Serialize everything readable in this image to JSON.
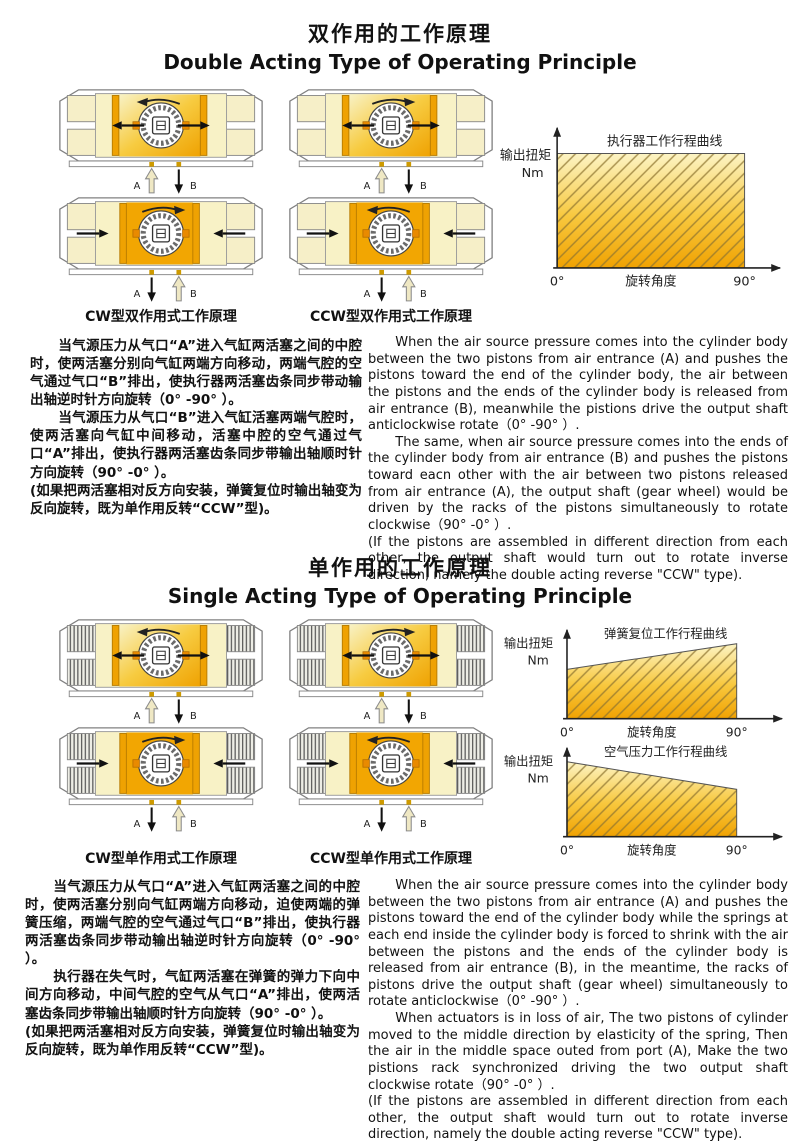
{
  "sections": {
    "double": {
      "title_zh": "双作用的工作原理",
      "title_en": "Double Acting Type of Operating Principle",
      "caption_cw": "CW型双作用式工作原理",
      "caption_ccw": "CCW型双作用式工作原理",
      "text_zh": [
        "当气源压力从气口“A”进入气缸两活塞之间的中腔时，使两活塞分别向气缸两端方向移动，两端气腔的空气通过气口“B”排出，使执行器两活塞齿条同步带动输出轴逆时针方向旋转（0° -90° ）。",
        "当气源压力从气口“B”进入气缸活塞两端气腔时，使两活塞向气缸中间移动，活塞中腔的空气通过气口“A”排出，使执行器两活塞齿条同步带输出轴顺时针方向旋转（90° -0° ）。",
        "(如果把两活塞相对反方向安装，弹簧复位时输出轴变为反向旋转，既为单作用反转“CCW”型)。"
      ],
      "text_en": [
        "When the air source pressure comes into the cylinder body between the two pistons from air entrance (A) and pushes the pistons toward the end of the cylinder body, the air between the pistons and the ends of the cylinder body is released from air entrance (B), meanwhile the pistions drive the output shaft anticlockwise rotate（0° -90° ）.",
        "The same, when air source pressure comes into the ends of the cylinder body from air entrance (B) and pushes the pistons toward eacn other with the air between two pistons released from air entrance (A), the output shaft (gear wheel) would be driven by the racks of the pistons simultaneously to rotate clockwise（90° -0° ）.",
        "(If the pistons are assembled in different direction from each other, the output shaft would turn out to rotate inverse direction, namely the double acting reverse \"CCW\" type)."
      ]
    },
    "single": {
      "title_zh": "单作用的工作原理",
      "title_en": "Single Acting Type of Operating Principle",
      "caption_cw": "CW型单作用式工作原理",
      "caption_ccw": "CCW型单作用式工作原理",
      "text_zh": [
        "当气源压力从气口“A”进入气缸两活塞之间的中腔时，使两活塞分别向气缸两端方向移动，迫使两端的弹簧压缩，两端气腔的空气通过气口“B”排出，使执行器两活塞齿条同步带动输出轴逆时针方向旋转（0° -90° ）。",
        "执行器在失气时，气缸两活塞在弹簧的弹力下向中间方向移动，中间气腔的空气从气口“A”排出，使两活塞齿条同步带输出轴顺时针方向旋转（90° -0° ）。",
        "(如果把两活塞相对反方向安装，弹簧复位时输出轴变为反向旋转，既为单作用反转“CCW”型)。"
      ],
      "text_en": [
        "When the air source pressure comes into the cylinder body between the two pistons from air entrance (A) and pushes the pistons toward the end of the cylinder body while the springs at each end inside the cylinder body is forced to shrink with the air between the pistons and the ends of the cylinder body is released from air entrance (B), in the meantime, the racks of pistons drive the output shaft (gear wheel) simultaneously to rotate anticlockwise（0° -90° ）.",
        "When actuators is in loss of air, The two pistons of cylinder moved to the middle direction by elasticity of the spring, Then the air in the middle space outed from port (A), Make the two pistions rack synchronized driving the two output shaft clockwise rotate（90° -0° ）.",
        "(If the pistons are assembled in different direction from each other, the output shaft would turn out to rotate inverse direction, namely the double acting reverse \"CCW\" type)."
      ]
    }
  },
  "chart_data": [
    {
      "type": "area",
      "title": "执行器工作行程曲线",
      "ylabel": "输出扭矩",
      "y_unit": "Nm",
      "xlabel": "旋转角度",
      "xticks": [
        "0°",
        "90°"
      ],
      "xlim": [
        0,
        90
      ],
      "torque_profile": "constant",
      "points": [
        {
          "angle": 0,
          "torque_pct": 100
        },
        {
          "angle": 90,
          "torque_pct": 100
        }
      ],
      "hatch": true,
      "fill_gradient": [
        "#FCF4C4",
        "#F0A202"
      ]
    },
    {
      "type": "area",
      "title": "弹簧复位工作行程曲线",
      "ylabel": "输出扭矩",
      "y_unit": "Nm",
      "xlabel": "旋转角度",
      "xticks": [
        "0°",
        "90°"
      ],
      "xlim": [
        0,
        90
      ],
      "torque_profile": "increasing",
      "points": [
        {
          "angle": 0,
          "torque_pct": 70
        },
        {
          "angle": 90,
          "torque_pct": 100
        }
      ],
      "hatch": true,
      "fill_gradient": [
        "#FCF4C4",
        "#F0A202"
      ]
    },
    {
      "type": "area",
      "title": "空气压力工作行程曲线",
      "ylabel": "输出扭矩",
      "y_unit": "Nm",
      "xlabel": "旋转角度",
      "xticks": [
        "0°",
        "90°"
      ],
      "xlim": [
        0,
        90
      ],
      "torque_profile": "decreasing",
      "points": [
        {
          "angle": 0,
          "torque_pct": 100
        },
        {
          "angle": 90,
          "torque_pct": 78
        }
      ],
      "hatch": true,
      "fill_gradient": [
        "#FCF4C4",
        "#F0A202"
      ]
    }
  ],
  "diagram": {
    "port_a": "A",
    "port_b": "B",
    "groups": [
      {
        "name": "cw-double-acting",
        "springs": false,
        "variants": [
          {
            "pistons": "out",
            "rotation": "ccw",
            "port_a": "intake",
            "port_b": "exhaust"
          },
          {
            "pistons": "in",
            "rotation": "cw",
            "port_a": "exhaust",
            "port_b": "intake"
          }
        ]
      },
      {
        "name": "ccw-double-acting",
        "springs": false,
        "variants": [
          {
            "pistons": "out",
            "rotation": "cw",
            "port_a": "intake",
            "port_b": "exhaust"
          },
          {
            "pistons": "in",
            "rotation": "ccw",
            "port_a": "exhaust",
            "port_b": "intake"
          }
        ]
      },
      {
        "name": "cw-single-acting",
        "springs": true,
        "variants": [
          {
            "pistons": "out",
            "rotation": "ccw",
            "port_a": "intake",
            "port_b": "exhaust"
          },
          {
            "pistons": "in",
            "rotation": "cw",
            "port_a": "exhaust",
            "port_b": "intake"
          }
        ]
      },
      {
        "name": "ccw-single-acting",
        "springs": true,
        "variants": [
          {
            "pistons": "out",
            "rotation": "cw",
            "port_a": "intake",
            "port_b": "exhaust"
          },
          {
            "pistons": "in",
            "rotation": "ccw",
            "port_a": "exhaust",
            "port_b": "intake"
          }
        ]
      }
    ]
  },
  "colors": {
    "body_yellow": "#F8F2C6",
    "piston_orange": "#EFA202",
    "pressure_orange": "#F2A602",
    "hatch_line": "#8F7430",
    "ink": "#111111"
  }
}
